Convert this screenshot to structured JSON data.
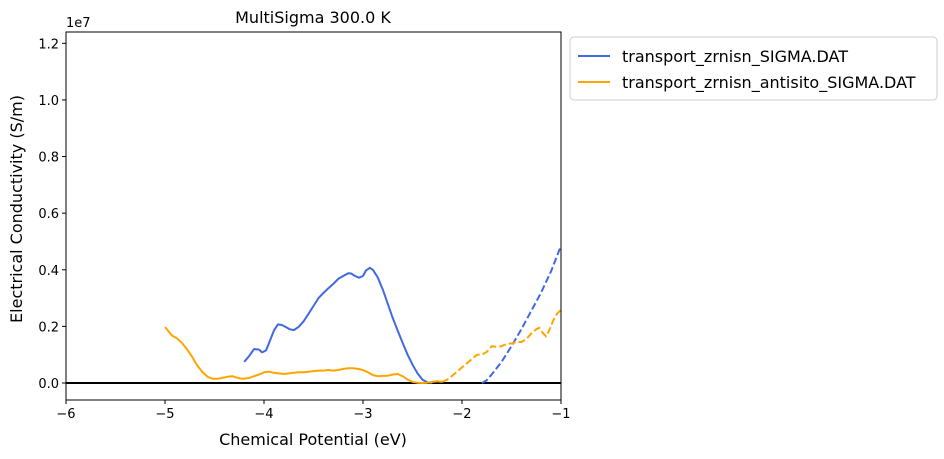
{
  "chart_data": {
    "type": "line",
    "title": "MultiSigma 300.0 K",
    "xlabel": "Chemical Potential (eV)",
    "ylabel": "Electrical Conductivity (S/m)",
    "y_offset_label": "1e7",
    "xlim": [
      -6,
      -1
    ],
    "ylim": [
      -0.06,
      1.24
    ],
    "xticks": [
      -6,
      -5,
      -4,
      -3,
      -2,
      -1
    ],
    "xtick_labels": [
      "−6",
      "−5",
      "−4",
      "−3",
      "−2",
      "−1"
    ],
    "yticks": [
      0.0,
      0.2,
      0.4,
      0.6,
      0.8,
      1.0,
      1.2
    ],
    "ytick_labels": [
      "0.0",
      "0.2",
      "0.4",
      "0.6",
      "0.8",
      "1.0",
      "1.2"
    ],
    "grid": false,
    "legend_position": "outside upper right",
    "zero_line": 0,
    "series": [
      {
        "name": "transport_zrnisn_SIGMA.DAT",
        "color": "#4169e1",
        "solid": [
          [
            -4.2,
            0.075
          ],
          [
            -4.15,
            0.095
          ],
          [
            -4.1,
            0.12
          ],
          [
            -4.05,
            0.118
          ],
          [
            -4.02,
            0.108
          ],
          [
            -3.98,
            0.115
          ],
          [
            -3.95,
            0.14
          ],
          [
            -3.9,
            0.185
          ],
          [
            -3.86,
            0.207
          ],
          [
            -3.82,
            0.205
          ],
          [
            -3.78,
            0.198
          ],
          [
            -3.74,
            0.19
          ],
          [
            -3.7,
            0.187
          ],
          [
            -3.65,
            0.198
          ],
          [
            -3.6,
            0.218
          ],
          [
            -3.55,
            0.245
          ],
          [
            -3.5,
            0.272
          ],
          [
            -3.45,
            0.3
          ],
          [
            -3.4,
            0.318
          ],
          [
            -3.35,
            0.335
          ],
          [
            -3.3,
            0.35
          ],
          [
            -3.25,
            0.368
          ],
          [
            -3.2,
            0.378
          ],
          [
            -3.15,
            0.388
          ],
          [
            -3.12,
            0.387
          ],
          [
            -3.08,
            0.378
          ],
          [
            -3.04,
            0.372
          ],
          [
            -3.0,
            0.378
          ],
          [
            -2.97,
            0.398
          ],
          [
            -2.93,
            0.407
          ],
          [
            -2.9,
            0.4
          ],
          [
            -2.85,
            0.372
          ],
          [
            -2.8,
            0.33
          ],
          [
            -2.75,
            0.28
          ],
          [
            -2.7,
            0.23
          ],
          [
            -2.65,
            0.185
          ],
          [
            -2.6,
            0.142
          ],
          [
            -2.55,
            0.1
          ],
          [
            -2.5,
            0.065
          ],
          [
            -2.45,
            0.035
          ],
          [
            -2.4,
            0.012
          ],
          [
            -2.35,
            0.002
          ],
          [
            -2.3,
            0.0
          ]
        ],
        "dashed": [
          [
            -1.8,
            0.0
          ],
          [
            -1.75,
            0.01
          ],
          [
            -1.7,
            0.03
          ],
          [
            -1.6,
            0.075
          ],
          [
            -1.5,
            0.13
          ],
          [
            -1.4,
            0.19
          ],
          [
            -1.3,
            0.255
          ],
          [
            -1.2,
            0.32
          ],
          [
            -1.1,
            0.395
          ],
          [
            -1.0,
            0.485
          ]
        ]
      },
      {
        "name": "transport_zrnisn_antisito_SIGMA.DAT",
        "color": "#ffa500",
        "solid": [
          [
            -5.0,
            0.198
          ],
          [
            -4.97,
            0.185
          ],
          [
            -4.93,
            0.168
          ],
          [
            -4.88,
            0.158
          ],
          [
            -4.83,
            0.142
          ],
          [
            -4.78,
            0.12
          ],
          [
            -4.73,
            0.095
          ],
          [
            -4.68,
            0.065
          ],
          [
            -4.62,
            0.038
          ],
          [
            -4.57,
            0.022
          ],
          [
            -4.52,
            0.015
          ],
          [
            -4.47,
            0.015
          ],
          [
            -4.42,
            0.018
          ],
          [
            -4.37,
            0.022
          ],
          [
            -4.32,
            0.024
          ],
          [
            -4.28,
            0.02
          ],
          [
            -4.24,
            0.016
          ],
          [
            -4.2,
            0.015
          ],
          [
            -4.15,
            0.018
          ],
          [
            -4.1,
            0.024
          ],
          [
            -4.05,
            0.03
          ],
          [
            -4.0,
            0.038
          ],
          [
            -3.95,
            0.04
          ],
          [
            -3.9,
            0.036
          ],
          [
            -3.85,
            0.034
          ],
          [
            -3.8,
            0.032
          ],
          [
            -3.75,
            0.034
          ],
          [
            -3.7,
            0.036
          ],
          [
            -3.65,
            0.038
          ],
          [
            -3.6,
            0.038
          ],
          [
            -3.55,
            0.04
          ],
          [
            -3.5,
            0.042
          ],
          [
            -3.45,
            0.044
          ],
          [
            -3.4,
            0.044
          ],
          [
            -3.35,
            0.046
          ],
          [
            -3.3,
            0.044
          ],
          [
            -3.25,
            0.046
          ],
          [
            -3.2,
            0.05
          ],
          [
            -3.15,
            0.052
          ],
          [
            -3.1,
            0.052
          ],
          [
            -3.05,
            0.05
          ],
          [
            -3.0,
            0.046
          ],
          [
            -2.95,
            0.038
          ],
          [
            -2.9,
            0.028
          ],
          [
            -2.85,
            0.024
          ],
          [
            -2.8,
            0.025
          ],
          [
            -2.75,
            0.026
          ],
          [
            -2.7,
            0.03
          ],
          [
            -2.65,
            0.032
          ],
          [
            -2.6,
            0.024
          ],
          [
            -2.55,
            0.012
          ],
          [
            -2.5,
            0.004
          ],
          [
            -2.45,
            0.001
          ],
          [
            -2.4,
            0.0
          ],
          [
            -2.35,
            0.001
          ],
          [
            -2.3,
            0.004
          ],
          [
            -2.25,
            0.006
          ],
          [
            -2.2,
            0.004
          ]
        ],
        "dashed": [
          [
            -2.2,
            0.004
          ],
          [
            -2.15,
            0.012
          ],
          [
            -2.1,
            0.025
          ],
          [
            -2.05,
            0.04
          ],
          [
            -2.0,
            0.055
          ],
          [
            -1.95,
            0.07
          ],
          [
            -1.9,
            0.085
          ],
          [
            -1.85,
            0.1
          ],
          [
            -1.8,
            0.1
          ],
          [
            -1.75,
            0.11
          ],
          [
            -1.7,
            0.13
          ],
          [
            -1.65,
            0.128
          ],
          [
            -1.6,
            0.13
          ],
          [
            -1.55,
            0.138
          ],
          [
            -1.5,
            0.14
          ],
          [
            -1.45,
            0.145
          ],
          [
            -1.4,
            0.145
          ],
          [
            -1.35,
            0.155
          ],
          [
            -1.3,
            0.175
          ],
          [
            -1.25,
            0.19
          ],
          [
            -1.22,
            0.195
          ],
          [
            -1.18,
            0.175
          ],
          [
            -1.15,
            0.165
          ],
          [
            -1.12,
            0.185
          ],
          [
            -1.08,
            0.22
          ],
          [
            -1.04,
            0.245
          ],
          [
            -1.0,
            0.258
          ]
        ]
      }
    ]
  }
}
